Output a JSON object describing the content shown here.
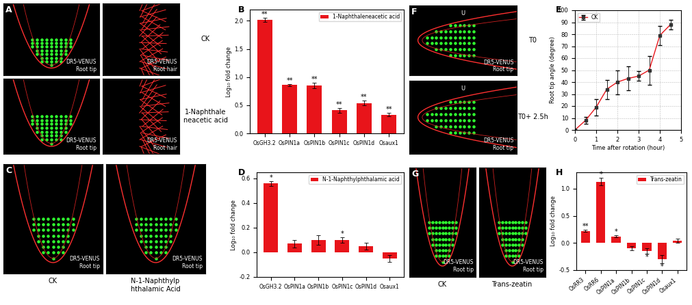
{
  "chart_data": [
    {
      "panel": "B",
      "type": "bar",
      "categories": [
        "OsGH3.2",
        "OsPIN1a",
        "OsPIN1b",
        "OsPIN1c",
        "OsPIN1d",
        "Osaux1"
      ],
      "series": [
        {
          "name": "1-Naphthaleneacetic acid",
          "color": "#e8141a",
          "values": [
            2.02,
            0.86,
            0.85,
            0.41,
            0.54,
            0.33
          ],
          "errors": [
            0.04,
            0.02,
            0.05,
            0.04,
            0.04,
            0.03
          ],
          "significance": [
            "**",
            "**",
            "**",
            "**",
            "**",
            "**"
          ]
        }
      ],
      "ylabel": "Log₁₀ fold change",
      "ylim": [
        0,
        2.2
      ],
      "yticks": [
        {
          "value": 0,
          "label": "0.0"
        },
        0.5,
        {
          "value": 1,
          "label": "1.0"
        },
        1.5,
        {
          "value": 2,
          "label": "2.0"
        }
      ],
      "legend": "upper right"
    },
    {
      "panel": "D",
      "type": "bar",
      "categories": [
        "OsGH3.2",
        "OsPIN1a",
        "OsPIN1b",
        "OsPIN1c",
        "OsPIN1d",
        "Osaux1"
      ],
      "series": [
        {
          "name": "N-1-Naphthylphthalamic acid",
          "color": "#e8141a",
          "values": [
            0.56,
            0.07,
            0.1,
            0.1,
            0.05,
            -0.05
          ],
          "errors": [
            0.02,
            0.03,
            0.04,
            0.02,
            0.03,
            0.03
          ],
          "significance": [
            "*",
            null,
            null,
            "*",
            null,
            null
          ]
        }
      ],
      "ylabel": "Log₁₀ fold change",
      "ylim": [
        -0.2,
        0.65
      ],
      "yticks": [
        -0.2,
        {
          "value": 0,
          "label": "0.0"
        },
        0.2,
        0.4,
        0.6
      ],
      "legend": "upper right"
    },
    {
      "panel": "E",
      "type": "line",
      "x": [
        0,
        0.5,
        1,
        1.5,
        2,
        2.5,
        3,
        3.5,
        4,
        4.5
      ],
      "series": [
        {
          "name": "CK",
          "color": "#e8141a",
          "marker": "square",
          "values": [
            0,
            8,
            19,
            34,
            40,
            43,
            45,
            50,
            79,
            88
          ],
          "errors": [
            0,
            3,
            7,
            8,
            10,
            10,
            4,
            12,
            8,
            4
          ]
        }
      ],
      "xlabel": "Time after rotation (hour)",
      "ylabel": "Root tip angle (degree)",
      "xlim": [
        0,
        5
      ],
      "ylim": [
        0,
        100
      ],
      "xticks": [
        0,
        1,
        2,
        3,
        4,
        5
      ],
      "yticks": [
        0,
        10,
        20,
        30,
        40,
        50,
        60,
        70,
        80,
        90,
        100
      ],
      "grid": true,
      "legend": "upper left"
    },
    {
      "panel": "H",
      "type": "bar",
      "categories": [
        "OsRR3",
        "OsRR6",
        "OsPIN1a",
        "OsPIN1b",
        "OsPIN1c",
        "OsPIN1d",
        "Osaux1"
      ],
      "series": [
        {
          "name": "Trans-zeatin",
          "color": "#e8141a",
          "values": [
            0.22,
            1.13,
            0.12,
            -0.1,
            -0.15,
            -0.3,
            0.04
          ],
          "errors": [
            0.02,
            0.07,
            0.02,
            0.04,
            0.05,
            0.08,
            0.04
          ],
          "significance": [
            "**",
            "*",
            "*",
            null,
            "*",
            "*",
            null
          ]
        }
      ],
      "ylabel": "Log₁₀ fold change",
      "ylim": [
        -0.5,
        1.3
      ],
      "yticks": [
        -0.5,
        {
          "value": 0,
          "label": "0.0"
        },
        0.5,
        {
          "value": 1,
          "label": "1.0"
        }
      ],
      "legend": "upper right"
    }
  ],
  "image_panels": [
    {
      "panel": "A",
      "tiles": [
        {
          "text": "DR5-VENUS\nRoot tip"
        },
        {
          "text": "DR5-VENUS\nRoot hair"
        },
        {
          "text": "DR5-VENUS\nRoot tip"
        },
        {
          "text": "DR5-VENUS\nRoot hair"
        }
      ],
      "captions": [
        "CK",
        "1-Naphthale\nneacetic acid"
      ]
    },
    {
      "panel": "C",
      "tiles": [
        {
          "text": "DR5-VENUS\nRoot tip"
        },
        {
          "text": "DR5-VENUS\nRoot tip"
        }
      ],
      "captions": [
        "CK",
        "N-1-Naphthylp\nhthalamic Acid"
      ]
    },
    {
      "panel": "F",
      "tiles": [
        {
          "text": "DR5-VENUS\nRoot tip",
          "mark": "U"
        },
        {
          "text": "DR5-VENUS\nRoot tip",
          "mark": "U"
        }
      ],
      "captions": [
        "T0",
        "T0+ 2.5h"
      ]
    },
    {
      "panel": "G",
      "tiles": [
        {
          "text": "DR5-VENUS\nRoot tip"
        },
        {
          "text": "DR5-VENUS\nRoot tip"
        }
      ],
      "captions": [
        "CK",
        "Trans-zeatin"
      ]
    }
  ]
}
